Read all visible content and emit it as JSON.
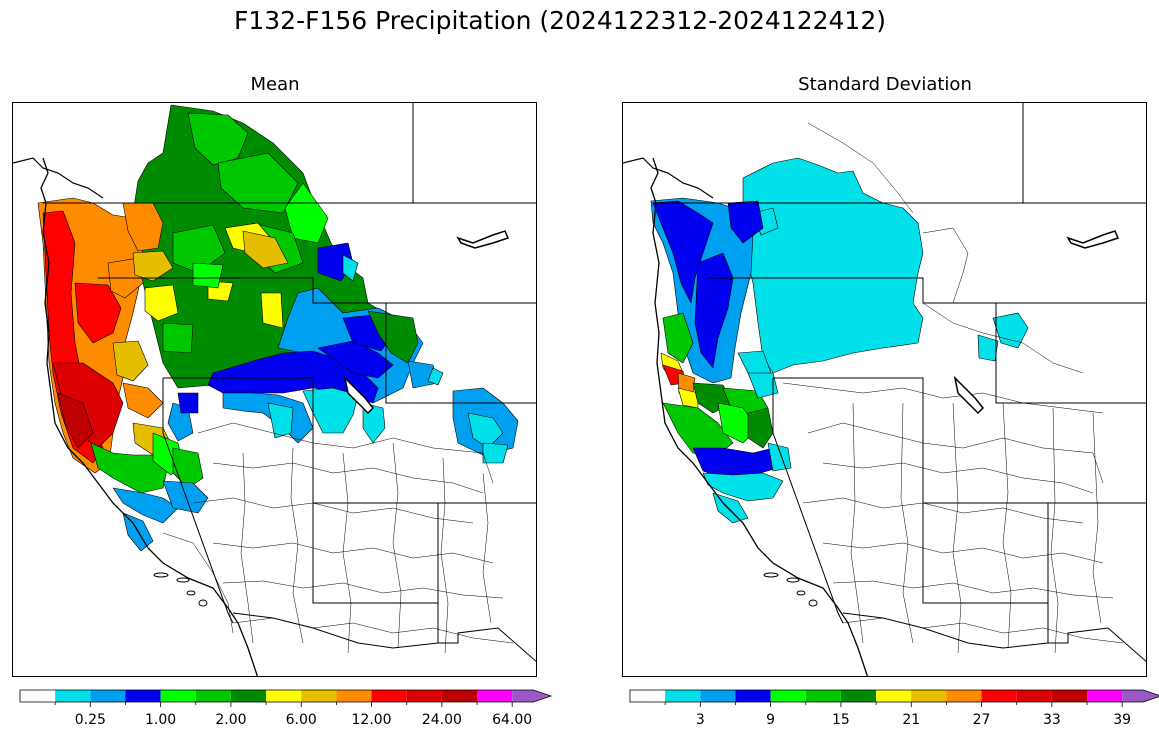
{
  "figure": {
    "title": "F132-F156 Precipitation (2024122312-2024122412)"
  },
  "panels": [
    {
      "id": "mean",
      "title": "Mean",
      "colorbar": {
        "colors": [
          "#ffffff",
          "#00e0e8",
          "#00a0f0",
          "#0000f0",
          "#00ff00",
          "#00c800",
          "#008c00",
          "#ffff00",
          "#e6be00",
          "#ff8c00",
          "#ff0000",
          "#dc0000",
          "#bf0000",
          "#ff00ff",
          "#9b59c8"
        ],
        "extend": "max",
        "tick_labels": [
          "0.25",
          "1.00",
          "2.00",
          "6.00",
          "12.00",
          "24.00",
          "64.00"
        ]
      }
    },
    {
      "id": "stddev",
      "title": "Standard Deviation",
      "colorbar": {
        "colors": [
          "#ffffff",
          "#00e0e8",
          "#00a0f0",
          "#0000f0",
          "#00ff00",
          "#00c800",
          "#008c00",
          "#ffff00",
          "#e6be00",
          "#ff8c00",
          "#ff0000",
          "#dc0000",
          "#bf0000",
          "#ff00ff",
          "#9b59c8"
        ],
        "extend": "max",
        "tick_labels": [
          "3",
          "9",
          "15",
          "21",
          "27",
          "33",
          "39"
        ]
      }
    }
  ]
}
